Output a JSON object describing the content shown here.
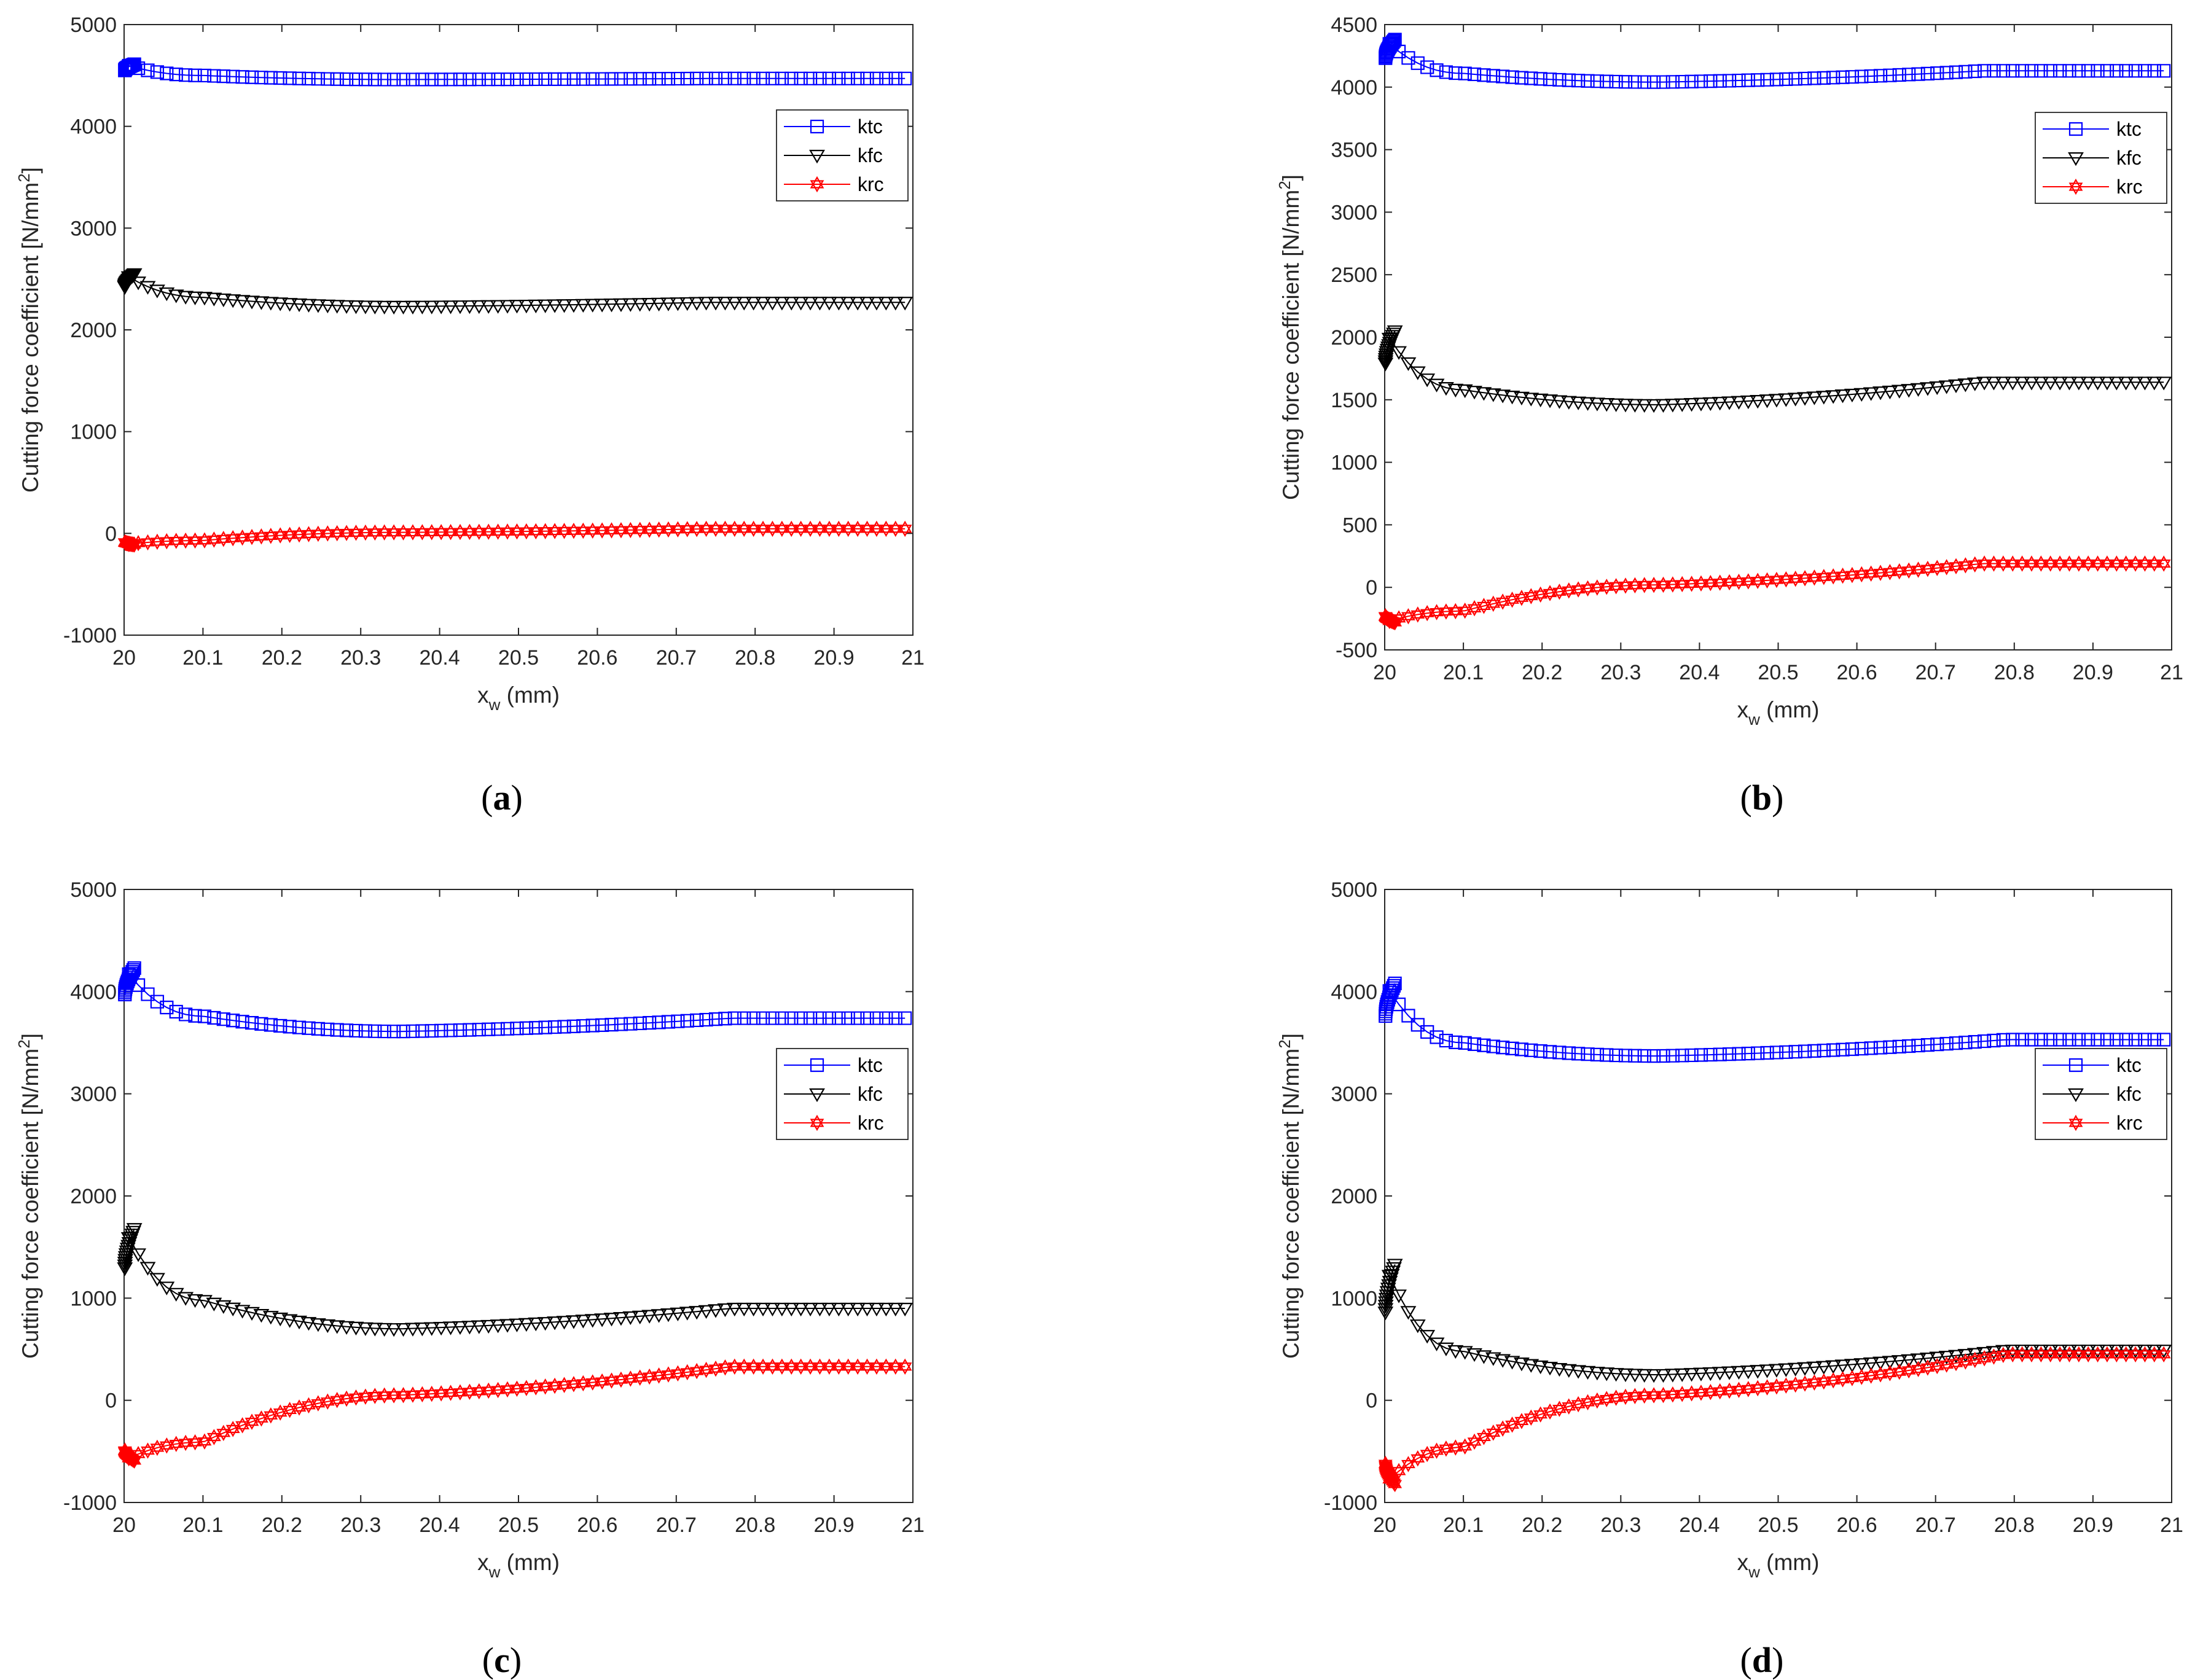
{
  "chart_data": [
    {
      "type": "line",
      "panel": "a",
      "caption": {
        "open": "(",
        "letter": "a",
        "close": ")"
      },
      "ylabel": "Cutting force coefficient [N/mm",
      "ylabel_sup": "2",
      "ylabel_tail": "]",
      "xlabel": "x",
      "xlabel_sub": "w",
      "xlabel_tail": " (mm)",
      "xlim": [
        20,
        21
      ],
      "ylim": [
        -1000,
        5000
      ],
      "xticks": [
        "20",
        "20.1",
        "20.2",
        "20.3",
        "20.4",
        "20.5",
        "20.6",
        "20.7",
        "20.8",
        "20.9",
        "21"
      ],
      "yticks": [
        "-1000",
        "0",
        "1000",
        "2000",
        "3000",
        "4000",
        "5000"
      ],
      "legend_position": "upper-right",
      "series": [
        {
          "name": "ktc",
          "color": "#0000ff",
          "marker": "square",
          "start": 4610,
          "knee": 4500,
          "mid": 4460,
          "end": 4470,
          "plateau_x": 20.74
        },
        {
          "name": "kfc",
          "color": "#000000",
          "marker": "triangle-down",
          "start": 2550,
          "knee": 2320,
          "mid": 2230,
          "end": 2270,
          "plateau_x": 20.74
        },
        {
          "name": "krc",
          "color": "#ff0000",
          "marker": "hexagram",
          "start": -110,
          "knee": -70,
          "mid": 10,
          "end": 45,
          "plateau_x": 20.74
        }
      ]
    },
    {
      "type": "line",
      "panel": "b",
      "caption": {
        "open": "(",
        "letter": "b",
        "close": ")"
      },
      "ylabel": "Cutting force coefficient [N/mm",
      "ylabel_sup": "2",
      "ylabel_tail": "]",
      "xlabel": "x",
      "xlabel_sub": "w",
      "xlabel_tail": " (mm)",
      "xlim": [
        20,
        21
      ],
      "ylim": [
        -500,
        4500
      ],
      "xticks": [
        "20",
        "20.1",
        "20.2",
        "20.3",
        "20.4",
        "20.5",
        "20.6",
        "20.7",
        "20.8",
        "20.9",
        "21"
      ],
      "yticks": [
        "-500",
        "0",
        "500",
        "1000",
        "1500",
        "2000",
        "2500",
        "3000",
        "3500",
        "4000",
        "4500"
      ],
      "legend_position": "upper-right",
      "series": [
        {
          "name": "ktc",
          "color": "#0000ff",
          "marker": "square",
          "start": 4380,
          "knee": 4110,
          "mid": 4040,
          "end": 4130,
          "plateau_x": 20.76
        },
        {
          "name": "kfc",
          "color": "#000000",
          "marker": "triangle-down",
          "start": 2050,
          "knee": 1580,
          "mid": 1460,
          "end": 1640,
          "plateau_x": 20.76
        },
        {
          "name": "krc",
          "color": "#ff0000",
          "marker": "hexagram",
          "start": -280,
          "knee": -190,
          "mid": 20,
          "end": 190,
          "plateau_x": 20.76
        }
      ]
    },
    {
      "type": "line",
      "panel": "c",
      "caption": {
        "open": "(",
        "letter": "c",
        "close": ")"
      },
      "ylabel": "Cutting force coefficient [N/mm",
      "ylabel_sup": "2",
      "ylabel_tail": "]",
      "xlabel": "x",
      "xlabel_sub": "w",
      "xlabel_tail": " (mm)",
      "xlim": [
        20,
        21
      ],
      "ylim": [
        -1000,
        5000
      ],
      "xticks": [
        "20",
        "20.1",
        "20.2",
        "20.3",
        "20.4",
        "20.5",
        "20.6",
        "20.7",
        "20.8",
        "20.9",
        "21"
      ],
      "yticks": [
        "-1000",
        "0",
        "1000",
        "2000",
        "3000",
        "4000",
        "5000"
      ],
      "legend_position": "middle-right",
      "series": [
        {
          "name": "ktc",
          "color": "#0000ff",
          "marker": "square",
          "start": 4230,
          "knee": 3760,
          "mid": 3610,
          "end": 3740,
          "plateau_x": 20.77
        },
        {
          "name": "kfc",
          "color": "#000000",
          "marker": "triangle-down",
          "start": 1680,
          "knee": 980,
          "mid": 700,
          "end": 900,
          "plateau_x": 20.77
        },
        {
          "name": "krc",
          "color": "#ff0000",
          "marker": "hexagram",
          "start": -590,
          "knee": -410,
          "mid": 50,
          "end": 330,
          "plateau_x": 20.77
        }
      ]
    },
    {
      "type": "line",
      "panel": "d",
      "caption": {
        "open": "(",
        "letter": "d",
        "close": ")"
      },
      "ylabel": "Cutting force coefficient [N/mm",
      "ylabel_sup": "2",
      "ylabel_tail": "]",
      "xlabel": "x",
      "xlabel_sub": "w",
      "xlabel_tail": " (mm)",
      "xlim": [
        20,
        21
      ],
      "ylim": [
        -1000,
        5000
      ],
      "xticks": [
        "20",
        "20.1",
        "20.2",
        "20.3",
        "20.4",
        "20.5",
        "20.6",
        "20.7",
        "20.8",
        "20.9",
        "21"
      ],
      "yticks": [
        "-1000",
        "0",
        "1000",
        "2000",
        "3000",
        "4000",
        "5000"
      ],
      "legend_position": "middle-right",
      "series": [
        {
          "name": "ktc",
          "color": "#0000ff",
          "marker": "square",
          "start": 4080,
          "knee": 3500,
          "mid": 3370,
          "end": 3530,
          "plateau_x": 20.79
        },
        {
          "name": "kfc",
          "color": "#000000",
          "marker": "triangle-down",
          "start": 1330,
          "knee": 480,
          "mid": 250,
          "end": 490,
          "plateau_x": 20.79
        },
        {
          "name": "krc",
          "color": "#ff0000",
          "marker": "hexagram",
          "start": -820,
          "knee": -460,
          "mid": 50,
          "end": 450,
          "plateau_x": 20.79
        }
      ]
    }
  ]
}
